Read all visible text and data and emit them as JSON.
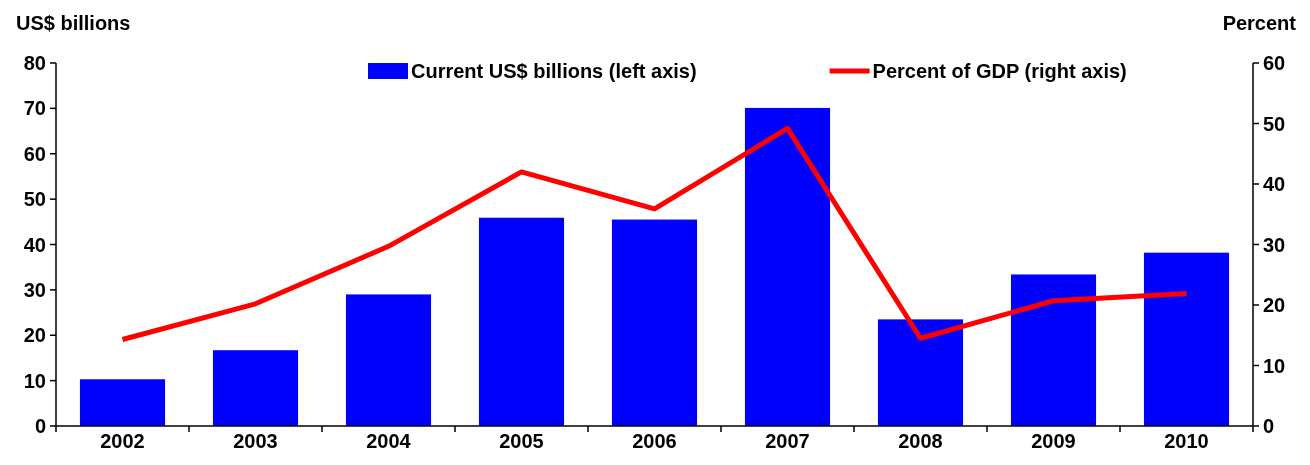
{
  "chart_data": {
    "type": "bar",
    "ylabel": "US$ billions",
    "y2label": "Percent",
    "categories": [
      "2002",
      "2003",
      "2004",
      "2005",
      "2006",
      "2007",
      "2008",
      "2009",
      "2010"
    ],
    "series": [
      {
        "name": "Current US$ billions (left axis)",
        "color": "#0000ff",
        "values": [
          10.3,
          16.7,
          29,
          45.9,
          45.5,
          70.1,
          23.5,
          33.4,
          38.2
        ]
      },
      {
        "name": "Percent of GDP (right axis)",
        "type": "line",
        "axis": "y2",
        "color": "#ff0000",
        "values": [
          14.3,
          20.2,
          29.7,
          42,
          35.9,
          49.2,
          14.5,
          20.7,
          21.9
        ]
      }
    ],
    "ylim": [
      0,
      80
    ],
    "yticks": [
      0,
      10,
      20,
      30,
      40,
      50,
      60,
      70,
      80
    ],
    "y2lim": [
      0,
      60
    ],
    "y2ticks": [
      0,
      10,
      20,
      30,
      40,
      50,
      60
    ],
    "legend": "top",
    "grid": false,
    "marker": "none",
    "line_style": "solid"
  }
}
